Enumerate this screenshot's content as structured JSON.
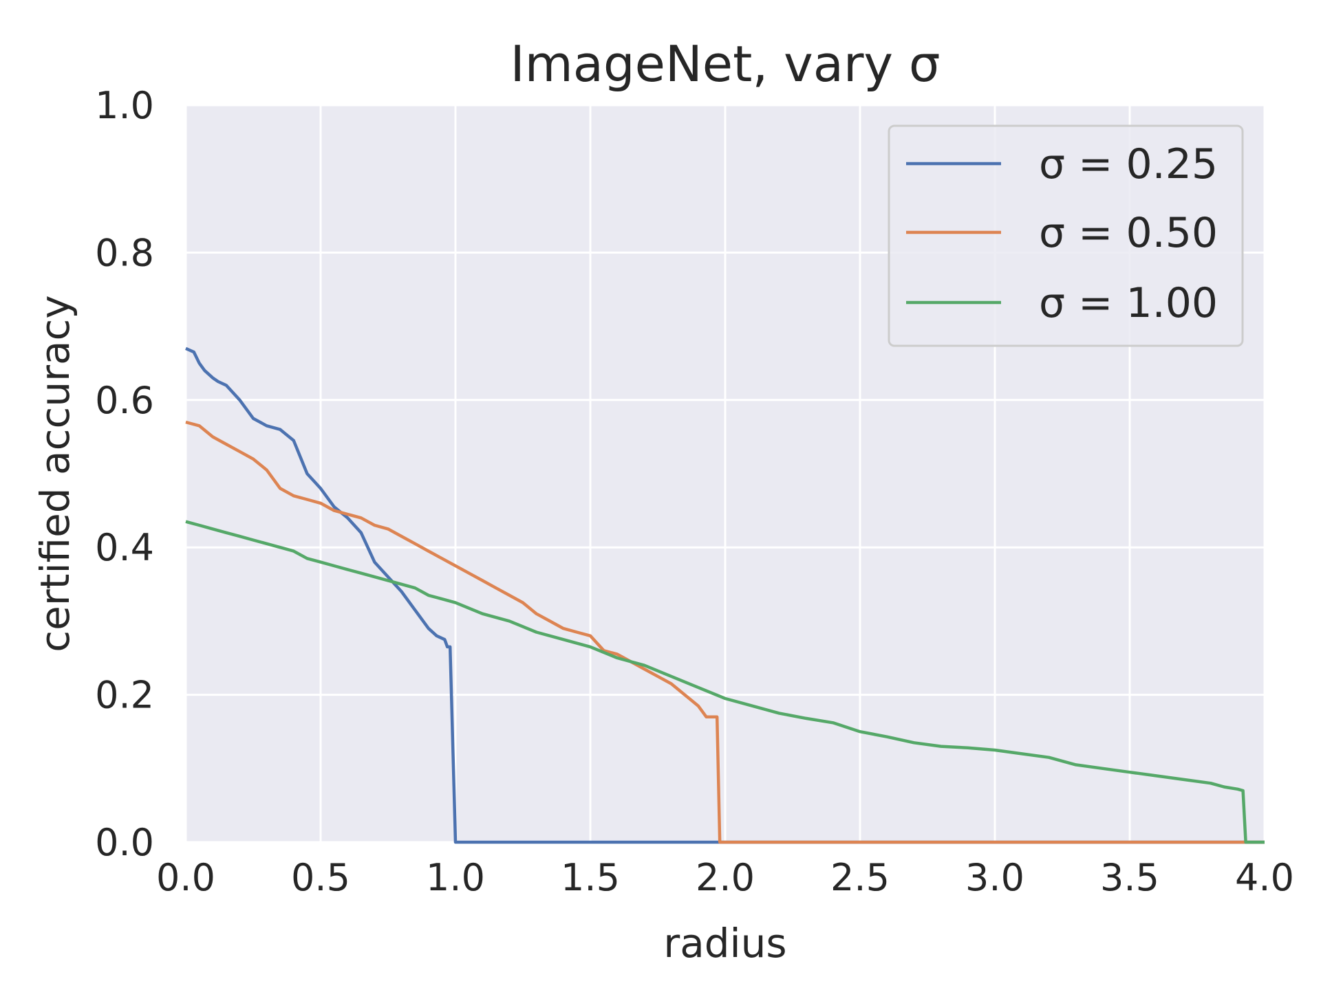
{
  "chart_data": {
    "type": "line",
    "title": "ImageNet, vary σ",
    "xlabel": "radius",
    "ylabel": "certified accuracy",
    "xlim": [
      0,
      4
    ],
    "ylim": [
      0,
      1
    ],
    "xticks": [
      "0.0",
      "0.5",
      "1.0",
      "1.5",
      "2.0",
      "2.5",
      "3.0",
      "3.5",
      "4.0"
    ],
    "yticks": [
      "0.0",
      "0.2",
      "0.4",
      "0.6",
      "0.8",
      "1.0"
    ],
    "grid": true,
    "legend_position": "top-right",
    "background_color": "#eaeaf2",
    "series": [
      {
        "name": "σ = 0.25",
        "color": "#4c72b0",
        "x": [
          0,
          0.03,
          0.05,
          0.07,
          0.1,
          0.12,
          0.15,
          0.2,
          0.25,
          0.3,
          0.35,
          0.4,
          0.45,
          0.5,
          0.55,
          0.6,
          0.65,
          0.7,
          0.75,
          0.8,
          0.85,
          0.9,
          0.93,
          0.96,
          0.97,
          0.98,
          1.0,
          4.0
        ],
        "y": [
          0.67,
          0.665,
          0.65,
          0.64,
          0.63,
          0.625,
          0.62,
          0.6,
          0.575,
          0.565,
          0.56,
          0.545,
          0.5,
          0.48,
          0.455,
          0.44,
          0.42,
          0.38,
          0.36,
          0.34,
          0.315,
          0.29,
          0.28,
          0.275,
          0.265,
          0.265,
          0.0,
          0.0
        ]
      },
      {
        "name": "σ = 0.50",
        "color": "#dd8452",
        "x": [
          0,
          0.05,
          0.1,
          0.15,
          0.2,
          0.25,
          0.3,
          0.35,
          0.4,
          0.45,
          0.5,
          0.55,
          0.6,
          0.65,
          0.7,
          0.75,
          0.8,
          0.85,
          0.9,
          0.95,
          1.0,
          1.05,
          1.1,
          1.15,
          1.2,
          1.25,
          1.3,
          1.35,
          1.4,
          1.45,
          1.5,
          1.55,
          1.6,
          1.65,
          1.7,
          1.75,
          1.8,
          1.85,
          1.9,
          1.93,
          1.96,
          1.97,
          1.98,
          4.0
        ],
        "y": [
          0.57,
          0.565,
          0.55,
          0.54,
          0.53,
          0.52,
          0.505,
          0.48,
          0.47,
          0.465,
          0.46,
          0.45,
          0.445,
          0.44,
          0.43,
          0.425,
          0.415,
          0.405,
          0.395,
          0.385,
          0.375,
          0.365,
          0.355,
          0.345,
          0.335,
          0.325,
          0.31,
          0.3,
          0.29,
          0.285,
          0.28,
          0.26,
          0.255,
          0.245,
          0.235,
          0.225,
          0.215,
          0.2,
          0.185,
          0.17,
          0.17,
          0.17,
          0.0,
          0.0
        ]
      },
      {
        "name": "σ = 1.00",
        "color": "#55a868",
        "x": [
          0,
          0.05,
          0.1,
          0.15,
          0.2,
          0.25,
          0.3,
          0.35,
          0.4,
          0.45,
          0.5,
          0.55,
          0.6,
          0.65,
          0.7,
          0.75,
          0.8,
          0.85,
          0.9,
          0.95,
          1.0,
          1.1,
          1.2,
          1.3,
          1.4,
          1.5,
          1.6,
          1.7,
          1.8,
          1.9,
          2.0,
          2.1,
          2.2,
          2.3,
          2.4,
          2.5,
          2.6,
          2.7,
          2.8,
          2.9,
          3.0,
          3.1,
          3.2,
          3.3,
          3.4,
          3.5,
          3.6,
          3.7,
          3.8,
          3.85,
          3.9,
          3.92,
          3.93,
          4.0
        ],
        "y": [
          0.435,
          0.43,
          0.425,
          0.42,
          0.415,
          0.41,
          0.405,
          0.4,
          0.395,
          0.385,
          0.38,
          0.375,
          0.37,
          0.365,
          0.36,
          0.355,
          0.35,
          0.345,
          0.335,
          0.33,
          0.325,
          0.31,
          0.3,
          0.285,
          0.275,
          0.265,
          0.25,
          0.24,
          0.225,
          0.21,
          0.195,
          0.185,
          0.175,
          0.168,
          0.162,
          0.15,
          0.143,
          0.135,
          0.13,
          0.128,
          0.125,
          0.12,
          0.115,
          0.105,
          0.1,
          0.095,
          0.09,
          0.085,
          0.08,
          0.075,
          0.072,
          0.07,
          0.0,
          0.0
        ]
      }
    ]
  }
}
